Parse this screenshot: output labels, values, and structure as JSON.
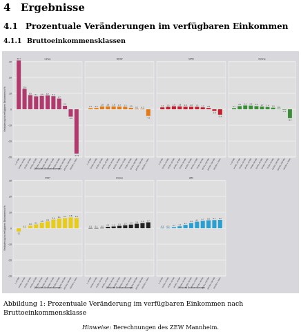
{
  "section": {
    "number": "4",
    "title": "Ergebnisse"
  },
  "subsection": {
    "number": "4.1",
    "title": "Prozentuale Veränderungen im verfügbaren Einkommen"
  },
  "subsubsection": {
    "number": "4.1.1",
    "title": "Bruttoeinkommensklassen"
  },
  "figure": {
    "caption": "Abbildung 1: Prozentuale Veränderung im verfügbaren Einkommen nach Bruttoeinkommensklasse",
    "note_label": "Hinweise:",
    "note_text": "Berechnungen des ZEW Mannheim."
  },
  "chart_data": [
    {
      "type": "bar",
      "title": "Linke",
      "color": "#b03a6e",
      "xlabel": "Jährliches Bruttoeinkommen",
      "ylabel": "Veränderung im verfügbaren Einkommen in %",
      "ylim": [
        -30,
        30
      ],
      "categories": [
        "1–10.000",
        "10.001–20.000",
        "20.001–30.000",
        "30.001–40.000",
        "40.001–50.000",
        "50.001–60.000",
        "60.001–70.000",
        "70.001–80.000",
        "80.001–100.000",
        "100.001–250.000",
        "250.001 u. Mehr"
      ],
      "values": [
        30.7,
        12.8,
        8.9,
        8.1,
        8.4,
        8.7,
        8.2,
        6.7,
        2.2,
        -4.6,
        -27.9
      ]
    },
    {
      "type": "bar",
      "title": "SDW",
      "color": "#e07b1a",
      "ylim": [
        -30,
        30
      ],
      "categories": [
        "1–10.000",
        "10.001–20.000",
        "20.001–30.000",
        "30.001–40.000",
        "40.001–50.000",
        "50.001–60.000",
        "60.001–70.000",
        "70.001–80.000",
        "80.001–100.000",
        "100.001–250.000",
        "250.001 u. Mehr"
      ],
      "values": [
        0.7,
        0.8,
        1.8,
        1.8,
        1.8,
        1.7,
        1.5,
        0.9,
        0.2,
        0.2,
        -4.2
      ]
    },
    {
      "type": "bar",
      "title": "SPD",
      "color": "#c41f2e",
      "ylim": [
        -30,
        30
      ],
      "categories": [
        "1–10.000",
        "10.001–20.000",
        "20.001–30.000",
        "30.001–40.000",
        "40.001–50.000",
        "50.001–60.000",
        "60.001–70.000",
        "70.001–80.000",
        "80.001–100.000",
        "100.001–250.000",
        "250.001 u. Mehr"
      ],
      "values": [
        1.2,
        1.5,
        1.9,
        1.8,
        1.6,
        1.6,
        1.5,
        1.2,
        0.8,
        -1.0,
        -3.4
      ]
    },
    {
      "type": "bar",
      "title": "Grüne",
      "color": "#3b8d38",
      "ylim": [
        -30,
        30
      ],
      "categories": [
        "1–10.000",
        "10.001–20.000",
        "20.001–30.000",
        "30.001–40.000",
        "40.001–50.000",
        "50.001–60.000",
        "60.001–70.000",
        "70.001–80.000",
        "80.001–100.000",
        "100.001–250.000",
        "250.001 u. Mehr"
      ],
      "values": [
        0.7,
        2.0,
        2.4,
        2.3,
        2.0,
        1.7,
        1.4,
        1.0,
        0.3,
        -0.1,
        -5.6
      ]
    },
    {
      "type": "bar",
      "title": "FDP",
      "color": "#e8cc1c",
      "xlabel": "Jährliches Bruttoeinkommen",
      "ylabel": "Veränderung im verfügbaren Einkommen in %",
      "ylim": [
        -30,
        30
      ],
      "categories": [
        "1–10.000",
        "10.001–20.000",
        "20.001–30.000",
        "30.001–40.000",
        "40.001–50.000",
        "50.001–60.000",
        "60.001–70.000",
        "70.001–80.000",
        "80.001–100.000",
        "100.001–250.000",
        "250.001 u. Mehr"
      ],
      "values": [
        -2.1,
        0.2,
        1.6,
        2.4,
        3.5,
        4.3,
        5.4,
        6.1,
        6.4,
        6.8,
        6.4
      ]
    },
    {
      "type": "bar",
      "title": "Union",
      "color": "#222222",
      "xlabel": "Jährliches Bruttoeinkommen",
      "ylim": [
        -30,
        30
      ],
      "categories": [
        "1–10.000",
        "10.001–20.000",
        "20.001–30.000",
        "30.001–40.000",
        "40.001–50.000",
        "50.001–60.000",
        "60.001–70.000",
        "70.001–80.000",
        "80.001–100.000",
        "100.001–250.000",
        "250.001 u. Mehr"
      ],
      "values": [
        0.1,
        0.1,
        0.2,
        0.9,
        1.1,
        1.5,
        1.9,
        2.3,
        2.8,
        3.3,
        3.7
      ]
    },
    {
      "type": "bar",
      "title": "AfD",
      "color": "#2a9fd0",
      "xlabel": "Jährliches Bruttoeinkommen",
      "ylim": [
        -30,
        30
      ],
      "categories": [
        "1–10.000",
        "10.001–20.000",
        "20.001–30.000",
        "30.001–40.000",
        "40.001–50.000",
        "50.001–60.000",
        "60.001–70.000",
        "70.001–80.000",
        "80.001–100.000",
        "100.001–250.000",
        "250.001 u. Mehr"
      ],
      "values": [
        0.2,
        0.2,
        0.7,
        1.2,
        2.1,
        3.3,
        4.1,
        4.7,
        5.0,
        5.1,
        5.2
      ]
    }
  ]
}
